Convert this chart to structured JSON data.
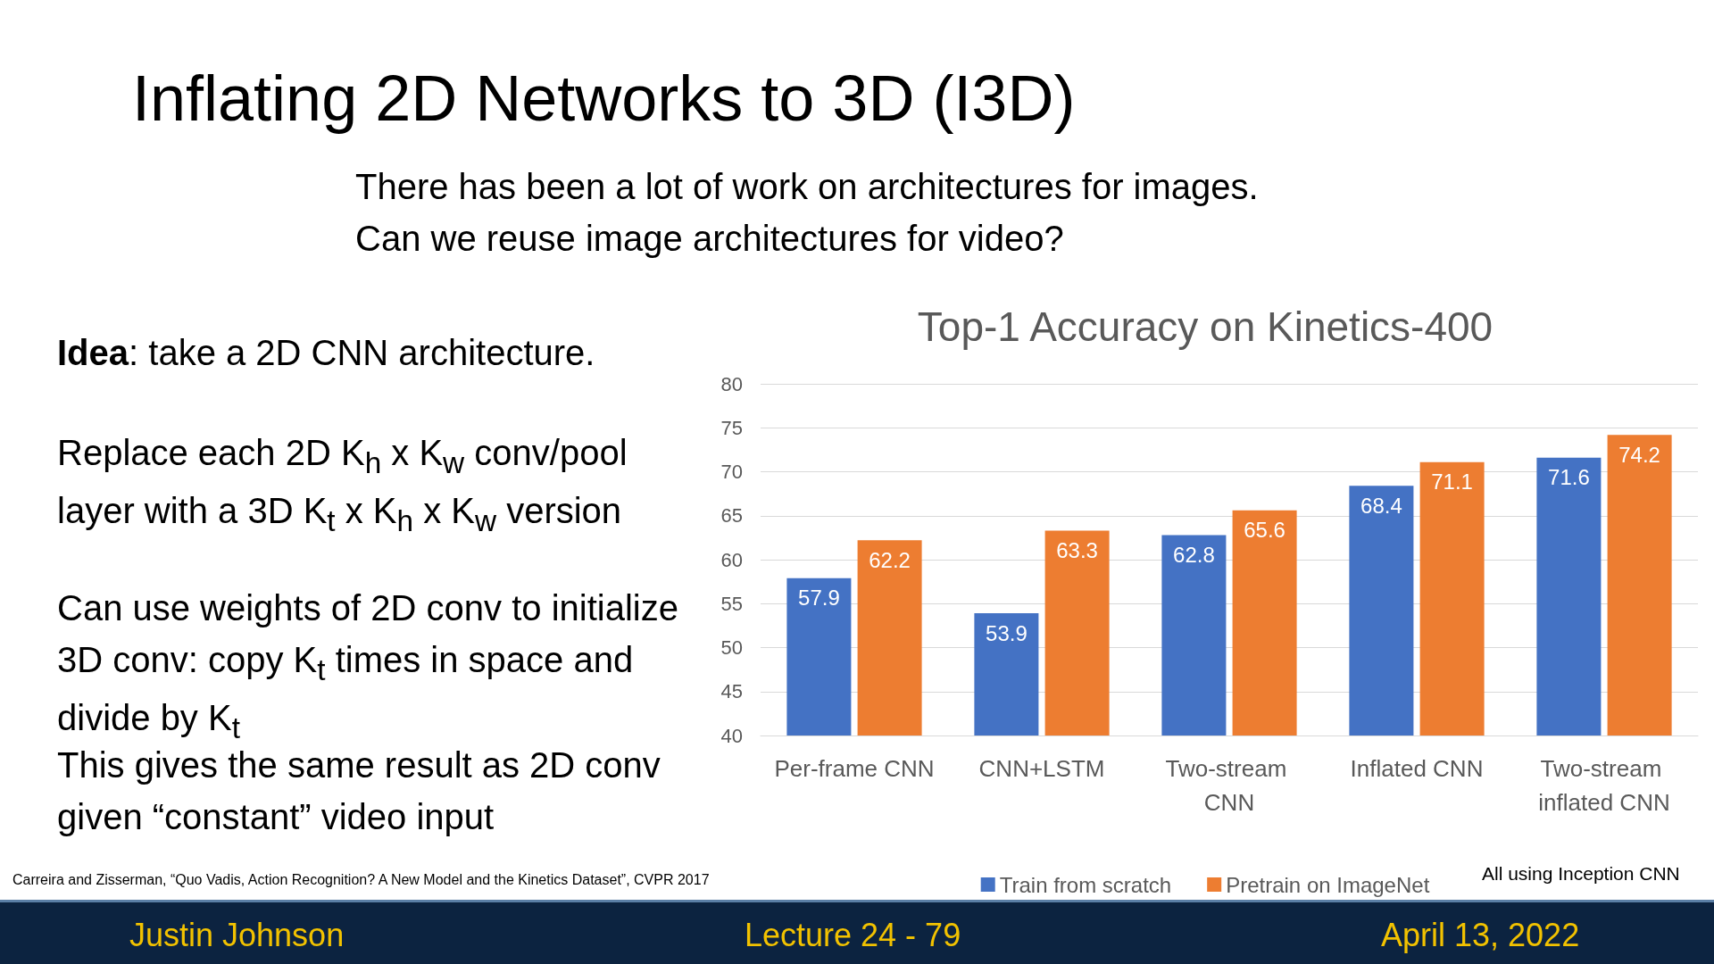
{
  "chart_data": {
    "type": "bar",
    "title": "Top-1 Accuracy on Kinetics-400",
    "categories": [
      "Per-frame CNN",
      "CNN+LSTM",
      "Two-stream CNN",
      "Inflated CNN",
      "Two-stream inflated CNN"
    ],
    "series": [
      {
        "name": "Train from scratch",
        "color": "#4472c4",
        "values": [
          57.9,
          53.9,
          62.8,
          68.4,
          71.6
        ]
      },
      {
        "name": "Pretrain on ImageNet",
        "color": "#ed7d31",
        "values": [
          62.2,
          63.3,
          65.6,
          71.1,
          74.2
        ]
      }
    ],
    "ylim": [
      40,
      80
    ],
    "yticks": [
      40,
      45,
      50,
      55,
      60,
      65,
      70,
      75,
      80
    ],
    "grid": "y",
    "legend": "bottom",
    "data_labels": true,
    "annotations": [
      "Inflating 2D Networks to 3D (I3D)",
      "There has been a lot of work on architectures for images.",
      "Can we reuse image architectures for video?",
      "Idea: take a 2D CNN architecture.",
      "Replace each 2D K$_{h}$ x K$_{w}$ conv/pool layer with a 3D K$_{t}$ x K$_{h}$ x K$_{w}$ version",
      "Can use weights of 2D conv to initialize 3D conv: copy K$_{t}$ times in space and divide by K$_{t}$",
      "This gives the same result as 2D conv given “constant” video input",
      "Carreira and Zisserman, “Quo Vadis, Action Recognition? A New Model and the Kinetics Dataset”, CVPR 2017",
      "All using Inception CNN",
      "Justin Johnson",
      "Lecture 24 -    79",
      "April 13, 2022"
    ]
  }
}
